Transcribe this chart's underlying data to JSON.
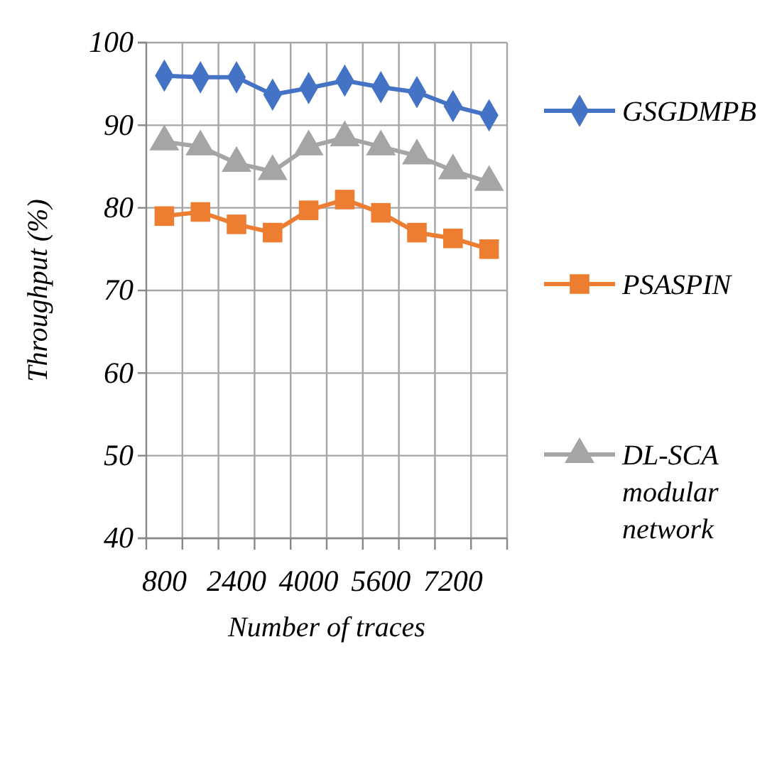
{
  "chart_data": {
    "type": "line",
    "xlabel": "Number of traces",
    "ylabel": "Throughput (%)",
    "categories": [
      "800",
      null,
      "2400",
      null,
      "4000",
      null,
      "5600",
      null,
      "7200",
      null
    ],
    "series": [
      {
        "name": "GSGDMPB",
        "color": "#4472c4",
        "marker": "diamond",
        "values": [
          96,
          95.8,
          95.8,
          93.7,
          94.5,
          95.4,
          94.6,
          94,
          92.3,
          91.2
        ]
      },
      {
        "name": "PSASPIN",
        "color": "#ed7d31",
        "marker": "square",
        "values": [
          79,
          79.5,
          78,
          77,
          79.7,
          81,
          79.4,
          77,
          76.3,
          75
        ]
      },
      {
        "name": "DL-SCA modular network",
        "color": "#a5a5a5",
        "marker": "triangle",
        "values": [
          88,
          87.4,
          85.4,
          84.4,
          87.4,
          88.5,
          87.4,
          86.3,
          84.5,
          83.1
        ]
      }
    ],
    "ylim": [
      40,
      100
    ],
    "yticks": [
      40,
      50,
      60,
      70,
      80,
      90,
      100
    ],
    "grid": true,
    "legend": "right",
    "line_style": "solid"
  }
}
